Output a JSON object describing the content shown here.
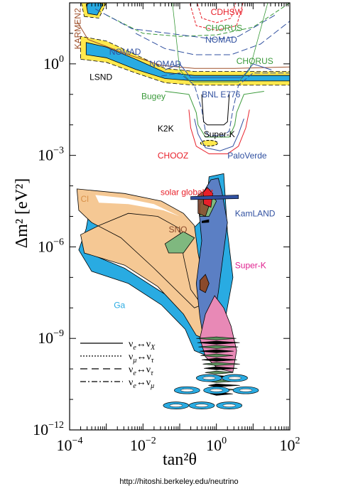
{
  "chart_data": {
    "type": "contour",
    "title": "",
    "xlabel": "tan²θ",
    "ylabel": "Δm² [eV²]",
    "x_scale": "log",
    "y_scale": "log",
    "xlim": [
      0.0001,
      100
    ],
    "ylim": [
      1e-12,
      100
    ],
    "x_ticks": [
      {
        "value": 0.0001,
        "base": "10",
        "exp": "−4"
      },
      {
        "value": 0.01,
        "base": "10",
        "exp": "−2"
      },
      {
        "value": 1,
        "base": "10",
        "exp": "0"
      },
      {
        "value": 100,
        "base": "10",
        "exp": "2"
      }
    ],
    "y_ticks": [
      {
        "value": 1e-12,
        "base": "10",
        "exp": "−12"
      },
      {
        "value": 1e-09,
        "base": "10",
        "exp": "−9"
      },
      {
        "value": 1e-06,
        "base": "10",
        "exp": "−6"
      },
      {
        "value": 0.001,
        "base": "10",
        "exp": "−3"
      },
      {
        "value": 1,
        "base": "10",
        "exp": "0"
      }
    ],
    "colors": {
      "cl": "#f5c894",
      "ga": "#29abe2",
      "superk_solar": "#5b7fc4",
      "pink": "#e889b6",
      "sno": "#8b4a2b",
      "solar_fit": "#e8202a",
      "green_overlap": "#7fb87f",
      "lsnd_fill": "#29abe2",
      "lsnd_outer": "#ffe94d"
    },
    "region_labels": [
      {
        "key": "cl",
        "text": "Cl",
        "color": "#d9914a",
        "x": 0.0002,
        "y": 3e-05
      },
      {
        "key": "ga",
        "text": "Ga",
        "color": "#29abe2",
        "x": 0.0016,
        "y": 1e-08
      },
      {
        "key": "sno",
        "text": "SNO",
        "color": "#8b4a2b",
        "x": 0.05,
        "y": 3e-06
      },
      {
        "key": "solar",
        "text": "solar global fit",
        "color": "#e8202a",
        "x": 0.03,
        "y": 5e-05
      },
      {
        "key": "kamland",
        "text": "KamLAND",
        "color": "#3050a0",
        "x": 3.2,
        "y": 1e-05
      },
      {
        "key": "superk_solar",
        "text": "Super-K",
        "color": "#e0208e",
        "x": 3.2,
        "y": 2e-07
      },
      {
        "key": "superk_atm",
        "text": "Super-K",
        "color": "#000000",
        "x": 0.45,
        "y": 0.004
      },
      {
        "key": "k2k",
        "text": "K2K",
        "color": "#000000",
        "x": 0.025,
        "y": 0.006
      },
      {
        "key": "chooz",
        "text": "CHOOZ",
        "color": "#e8202a",
        "x": 0.025,
        "y": 0.0008
      },
      {
        "key": "paloverde",
        "text": "PaloVerde",
        "color": "#3050a0",
        "x": 2,
        "y": 0.0008
      },
      {
        "key": "lsnd",
        "text": "LSND",
        "color": "#000000",
        "x": 0.00035,
        "y": 0.3
      },
      {
        "key": "bugey",
        "text": "Bugey",
        "color": "#3a9a3a",
        "x": 0.009,
        "y": 0.07
      },
      {
        "key": "bnl",
        "text": "BNL E776",
        "color": "#3050a0",
        "x": 0.4,
        "y": 0.08
      },
      {
        "key": "nomad1",
        "text": "NOMAD",
        "color": "#3050a0",
        "x": 0.0012,
        "y": 2
      },
      {
        "key": "nomad2",
        "text": "NOMAD",
        "color": "#3050a0",
        "x": 0.015,
        "y": 0.8
      },
      {
        "key": "nomad3",
        "text": "NOMAD",
        "color": "#3050a0",
        "x": 0.5,
        "y": 5
      },
      {
        "key": "chorus1",
        "text": "CHORUS",
        "color": "#3a9a3a",
        "x": 0.5,
        "y": 12
      },
      {
        "key": "chorus2",
        "text": "CHORUS",
        "color": "#3a9a3a",
        "x": 3.5,
        "y": 1
      },
      {
        "key": "cdhsw",
        "text": "CDHSW",
        "color": "#e8202a",
        "x": 0.7,
        "y": 40
      },
      {
        "key": "karmen",
        "text": "KARMEN2",
        "color": "#a0522d",
        "x": 0.0002,
        "y": 3
      }
    ],
    "legend": {
      "placement": "bottom-left",
      "entries": [
        {
          "style": "solid",
          "nu1": "ν",
          "sub1": "e",
          "nu2": "ν",
          "sub2": "X"
        },
        {
          "style": "dotted",
          "nu1": "ν",
          "sub1": "μ",
          "nu2": "ν",
          "sub2": "τ"
        },
        {
          "style": "dashed",
          "nu1": "ν",
          "sub1": "e",
          "nu2": "ν",
          "sub2": "τ"
        },
        {
          "style": "dashdot",
          "nu1": "ν",
          "sub1": "e",
          "nu2": "ν",
          "sub2": "μ"
        }
      ]
    }
  },
  "footer": {
    "url": "http://hitoshi.berkeley.edu/neutrino"
  }
}
